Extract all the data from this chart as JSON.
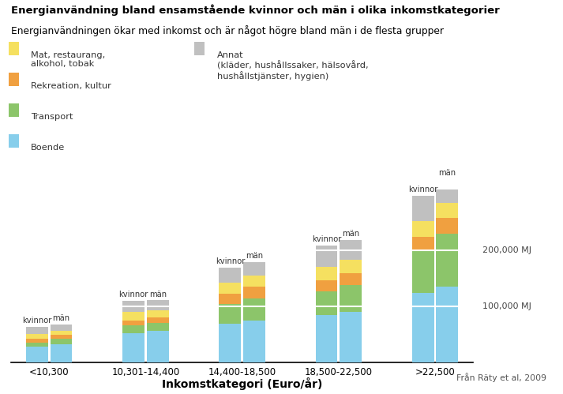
{
  "title": "Energianvändning bland ensamstående kvinnor och män i olika inkomstkategorier",
  "subtitle": "Energianvändningen ökar med inkomst och är något högre bland män i de flesta grupper",
  "xlabel": "Inkomstkategori (Euro/år)",
  "categories": [
    "<10,300",
    "10,301-14,400",
    "14,400-18,500",
    "18,500-22,500",
    ">22,500"
  ],
  "groups": [
    "kvinnor",
    "män"
  ],
  "segment_labels": [
    "Boende",
    "Transport",
    "Rekreation, kultur",
    "Mat, restaurang,\nalkohol, tobak",
    "Annat"
  ],
  "legend_labels": [
    "Mat, restaurang,\nalkohol, tobak",
    "Rekreation, kultur",
    "Transport",
    "Boende"
  ],
  "legend2_label": "Annat\n(kläder, hushållssaker, hälsovård,\nhushållstjänster, hygien)",
  "colors": [
    "#87CEEB",
    "#8CC56A",
    "#F0A040",
    "#F5E060",
    "#C0C0C0"
  ],
  "data": {
    "kvinnor": [
      [
        28000,
        8000,
        7000,
        8000,
        13000
      ],
      [
        52000,
        14000,
        9000,
        15000,
        20000
      ],
      [
        70000,
        35000,
        18000,
        20000,
        27000
      ],
      [
        85000,
        42000,
        20000,
        24000,
        38000
      ],
      [
        125000,
        75000,
        25000,
        28000,
        45000
      ]
    ],
    "män": [
      [
        32000,
        10000,
        7000,
        7000,
        12000
      ],
      [
        56000,
        15000,
        9000,
        13000,
        18000
      ],
      [
        75000,
        40000,
        20000,
        20000,
        25000
      ],
      [
        90000,
        48000,
        22000,
        24000,
        35000
      ],
      [
        135000,
        95000,
        28000,
        28000,
        42000
      ]
    ]
  },
  "hline_color": "#FFFFFF",
  "hline_values": [
    100000,
    200000
  ],
  "source": "Från Räty et al, 2009",
  "background_color": "#FFFFFF",
  "bar_width": 0.32,
  "ylim": 310000
}
